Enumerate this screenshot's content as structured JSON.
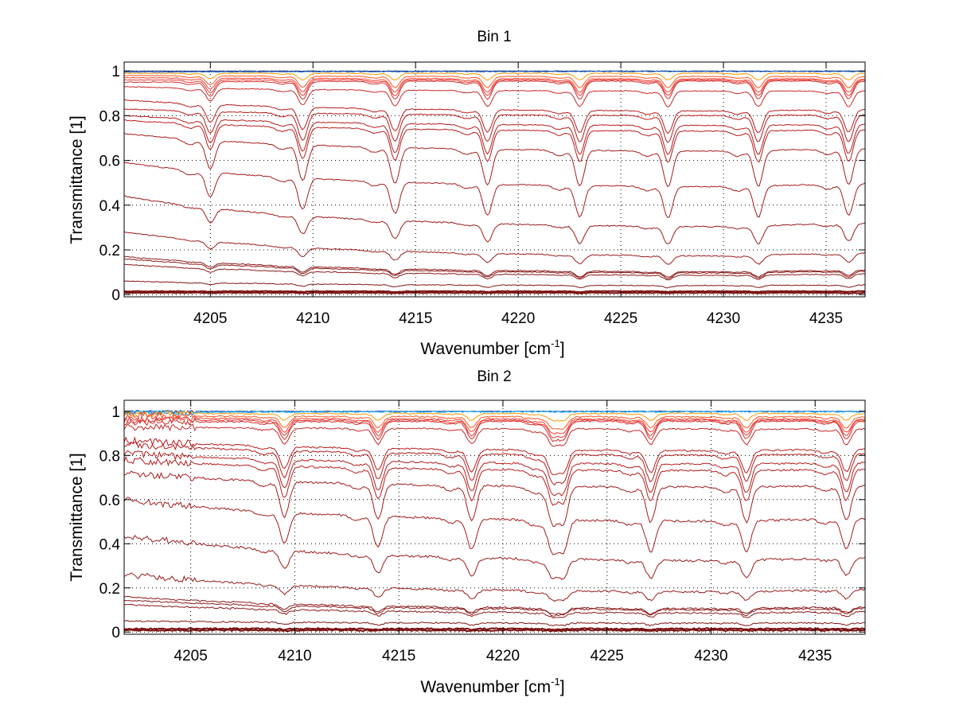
{
  "figure": {
    "background": "#ffffff"
  },
  "chart_data": [
    {
      "type": "line",
      "title": "Bin 1",
      "xlabel": "Wavenumber [cm",
      "xlabel_sup": "-1",
      "xlabel_end": "]",
      "ylabel": "Transmittance [1]",
      "xlim": [
        4200.8,
        4236.9
      ],
      "ylim": [
        -0.01,
        1.04
      ],
      "x_ticks": [
        4205,
        4210,
        4215,
        4220,
        4225,
        4230,
        4235
      ],
      "x_tick_labels": [
        "4205",
        "4210",
        "4215",
        "4220",
        "4225",
        "4230",
        "4235"
      ],
      "y_ticks": [
        0,
        0.2,
        0.4,
        0.6,
        0.8,
        1
      ],
      "y_tick_labels": [
        "0",
        "0.2",
        "0.4",
        "0.6",
        "0.8",
        "1"
      ],
      "grid": "dotted",
      "absorption_lines": [
        4205.0,
        4209.5,
        4214.0,
        4218.5,
        4223.0,
        4227.3,
        4231.7,
        4236.1
      ],
      "series": [
        {
          "name": "curve-01",
          "color": "#1a237e",
          "start": 1.0,
          "end": 1.0,
          "depth": 0.0
        },
        {
          "name": "curve-02",
          "color": "#1565c0",
          "start": 0.995,
          "end": 0.998,
          "depth": 0.0
        },
        {
          "name": "curve-03",
          "color": "#ff9800",
          "start": 0.99,
          "end": 0.99,
          "depth": 0.03
        },
        {
          "name": "curve-04",
          "color": "#ff5722",
          "start": 0.98,
          "end": 0.975,
          "depth": 0.05
        },
        {
          "name": "curve-05",
          "color": "#f44336",
          "start": 0.97,
          "end": 0.965,
          "depth": 0.06
        },
        {
          "name": "curve-06",
          "color": "#e53935",
          "start": 0.96,
          "end": 0.96,
          "depth": 0.07
        },
        {
          "name": "curve-07",
          "color": "#d32f2f",
          "start": 0.95,
          "end": 0.955,
          "depth": 0.08
        },
        {
          "name": "curve-08",
          "color": "#c62828",
          "start": 0.93,
          "end": 0.91,
          "depth": 0.07
        },
        {
          "name": "curve-09",
          "color": "#b71c1c",
          "start": 0.87,
          "end": 0.82,
          "depth": 0.1
        },
        {
          "name": "curve-10",
          "color": "#b71c1c",
          "start": 0.83,
          "end": 0.8,
          "depth": 0.12
        },
        {
          "name": "curve-11",
          "color": "#b71c1c",
          "start": 0.8,
          "end": 0.755,
          "depth": 0.13
        },
        {
          "name": "curve-12",
          "color": "#b71c1c",
          "start": 0.78,
          "end": 0.73,
          "depth": 0.14
        },
        {
          "name": "curve-13",
          "color": "#a51c1c",
          "start": 0.72,
          "end": 0.64,
          "depth": 0.16
        },
        {
          "name": "curve-14",
          "color": "#a51c1c",
          "start": 0.59,
          "end": 0.48,
          "depth": 0.14
        },
        {
          "name": "curve-15",
          "color": "#9b1b1b",
          "start": 0.44,
          "end": 0.3,
          "depth": 0.08
        },
        {
          "name": "curve-16",
          "color": "#9b1b1b",
          "start": 0.28,
          "end": 0.17,
          "depth": 0.04
        },
        {
          "name": "curve-17",
          "color": "#8b1a1a",
          "start": 0.17,
          "end": 0.1,
          "depth": 0.025
        },
        {
          "name": "curve-18",
          "color": "#8b1a1a",
          "start": 0.16,
          "end": 0.095,
          "depth": 0.025
        },
        {
          "name": "curve-19",
          "color": "#8b1a1a",
          "start": 0.135,
          "end": 0.085,
          "depth": 0.02
        },
        {
          "name": "curve-20",
          "color": "#801515",
          "start": 0.06,
          "end": 0.04,
          "depth": 0.01
        },
        {
          "name": "curve-21",
          "color": "#7a1010",
          "start": 0.015,
          "end": 0.015,
          "depth": 0.003
        },
        {
          "name": "curve-22",
          "color": "#7a1010",
          "start": 0.008,
          "end": 0.008,
          "depth": 0.002
        }
      ]
    },
    {
      "type": "line",
      "title": "Bin 2",
      "xlabel": "Wavenumber [cm",
      "xlabel_sup": "-1",
      "xlabel_end": "]",
      "ylabel": "Transmittance [1]",
      "xlim": [
        4201.8,
        4237.4
      ],
      "ylim": [
        -0.01,
        1.05
      ],
      "x_ticks": [
        4205,
        4210,
        4215,
        4220,
        4225,
        4230,
        4235
      ],
      "x_tick_labels": [
        "4205",
        "4210",
        "4215",
        "4220",
        "4225",
        "4230",
        "4235"
      ],
      "y_ticks": [
        0,
        0.2,
        0.4,
        0.6,
        0.8,
        1
      ],
      "y_tick_labels": [
        "0",
        "0.2",
        "0.4",
        "0.6",
        "0.8",
        "1"
      ],
      "grid": "dotted",
      "absorption_lines": [
        4209.5,
        4214.0,
        4218.5,
        4222.4,
        4222.9,
        4227.1,
        4231.7,
        4236.5
      ],
      "series": [
        {
          "name": "curve-01",
          "color": "#1a237e",
          "start": 1.0,
          "end": 1.0,
          "depth": 0.0
        },
        {
          "name": "curve-02",
          "color": "#1976d2",
          "start": 1.0,
          "end": 1.0,
          "depth": 0.0
        },
        {
          "name": "curve-03",
          "color": "#29b6f6",
          "start": 0.995,
          "end": 0.998,
          "depth": 0.0
        },
        {
          "name": "curve-04",
          "color": "#ff9800",
          "start": 0.99,
          "end": 0.99,
          "depth": 0.03
        },
        {
          "name": "curve-05",
          "color": "#ff5722",
          "start": 0.98,
          "end": 0.975,
          "depth": 0.05
        },
        {
          "name": "curve-06",
          "color": "#f44336",
          "start": 0.97,
          "end": 0.965,
          "depth": 0.06
        },
        {
          "name": "curve-07",
          "color": "#e53935",
          "start": 0.96,
          "end": 0.96,
          "depth": 0.07
        },
        {
          "name": "curve-08",
          "color": "#d32f2f",
          "start": 0.95,
          "end": 0.955,
          "depth": 0.08
        },
        {
          "name": "curve-09",
          "color": "#c62828",
          "start": 0.93,
          "end": 0.92,
          "depth": 0.07
        },
        {
          "name": "curve-10",
          "color": "#b71c1c",
          "start": 0.87,
          "end": 0.82,
          "depth": 0.1
        },
        {
          "name": "curve-11",
          "color": "#b71c1c",
          "start": 0.85,
          "end": 0.8,
          "depth": 0.12
        },
        {
          "name": "curve-12",
          "color": "#b71c1c",
          "start": 0.81,
          "end": 0.76,
          "depth": 0.13
        },
        {
          "name": "curve-13",
          "color": "#b71c1c",
          "start": 0.78,
          "end": 0.73,
          "depth": 0.14
        },
        {
          "name": "curve-14",
          "color": "#a51c1c",
          "start": 0.72,
          "end": 0.655,
          "depth": 0.16
        },
        {
          "name": "curve-15",
          "color": "#a51c1c",
          "start": 0.6,
          "end": 0.5,
          "depth": 0.14
        },
        {
          "name": "curve-16",
          "color": "#9b1b1b",
          "start": 0.44,
          "end": 0.32,
          "depth": 0.08
        },
        {
          "name": "curve-17",
          "color": "#9b1b1b",
          "start": 0.26,
          "end": 0.18,
          "depth": 0.04
        },
        {
          "name": "curve-18",
          "color": "#8b1a1a",
          "start": 0.16,
          "end": 0.105,
          "depth": 0.025
        },
        {
          "name": "curve-19",
          "color": "#8b1a1a",
          "start": 0.145,
          "end": 0.1,
          "depth": 0.025
        },
        {
          "name": "curve-20",
          "color": "#8b1a1a",
          "start": 0.125,
          "end": 0.085,
          "depth": 0.02
        },
        {
          "name": "curve-21",
          "color": "#801515",
          "start": 0.05,
          "end": 0.04,
          "depth": 0.01
        },
        {
          "name": "curve-22",
          "color": "#7a1010",
          "start": 0.015,
          "end": 0.015,
          "depth": 0.003
        },
        {
          "name": "curve-23",
          "color": "#7a1010",
          "start": 0.008,
          "end": 0.008,
          "depth": 0.002
        }
      ]
    }
  ]
}
